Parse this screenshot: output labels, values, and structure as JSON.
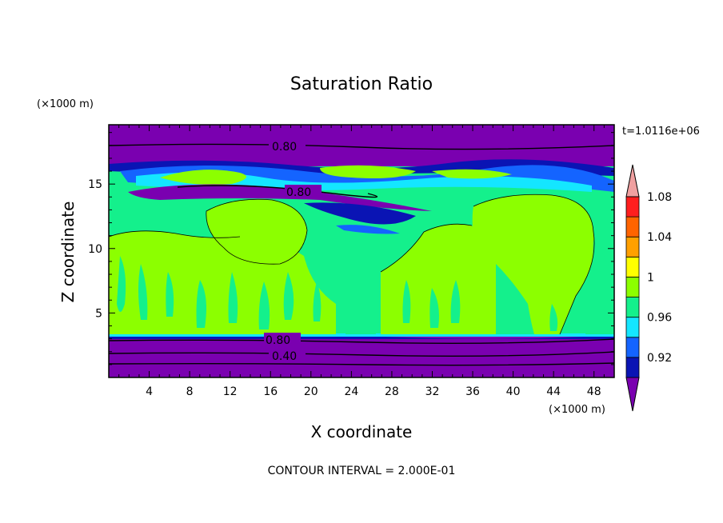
{
  "chart_data": {
    "type": "heatmap",
    "title": "Saturation Ratio",
    "xlabel": "X coordinate",
    "ylabel": "Z coordinate",
    "x_unit": "(×1000 m)",
    "y_unit": "(×1000 m)",
    "time_label": "t=1.0116e+06",
    "footer": "CONTOUR INTERVAL = 2.000E-01",
    "xlim": [
      0,
      50
    ],
    "ylim": [
      0,
      19.6
    ],
    "x_ticks": [
      "4",
      "8",
      "12",
      "16",
      "20",
      "24",
      "28",
      "32",
      "36",
      "40",
      "44",
      "48"
    ],
    "y_ticks": [
      "5",
      "10",
      "15"
    ],
    "contour_labels": [
      "0.80",
      "0.80",
      "0.80",
      "0.40"
    ],
    "colorbar": {
      "levels": [
        "0.92",
        "0.96",
        "1",
        "1.04",
        "1.08"
      ],
      "colors": [
        "#7a00b0",
        "#0a14b4",
        "#1464ff",
        "#14e6ff",
        "#14f08c",
        "#8cff00",
        "#ffff00",
        "#ffa000",
        "#ff6400",
        "#ff1e1e",
        "#f0a0a0"
      ]
    },
    "regions": [
      {
        "band": "z 0-3.3",
        "value": "below 0.92"
      },
      {
        "band": "z 3.3-11 (mixed)",
        "value": "0.98-1.02"
      },
      {
        "band": "z 11-13.5",
        "value": "0.98-1.00"
      },
      {
        "band": "z 13.5-17.5 (mixed)",
        "value": "0.90-1.00"
      },
      {
        "band": "z 17.5-19.6",
        "value": "below 0.92"
      }
    ]
  }
}
